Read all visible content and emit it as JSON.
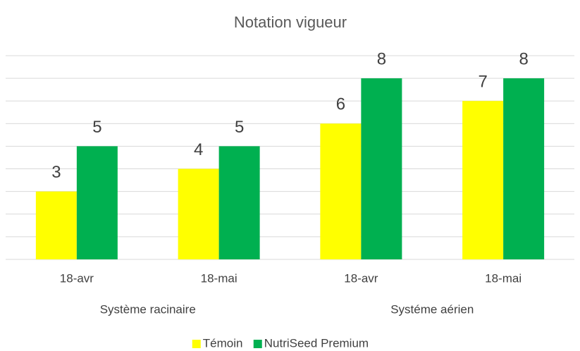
{
  "chart_data": {
    "type": "bar",
    "title": "Notation vigueur",
    "groups": [
      {
        "name": "Système racinaire",
        "categories": [
          "18-avr",
          "18-mai"
        ]
      },
      {
        "name": "Systéme aérien",
        "categories": [
          "18-avr",
          "18-mai"
        ]
      }
    ],
    "series": [
      {
        "name": "Témoin",
        "color": "#ffff00",
        "values": [
          3,
          4,
          6,
          7
        ]
      },
      {
        "name": "NutriSeed Premium",
        "color": "#00b050",
        "values": [
          5,
          5,
          8,
          8
        ]
      }
    ],
    "ylim": [
      0,
      9
    ],
    "yticks": [
      0,
      1,
      2,
      3,
      4,
      5,
      6,
      7,
      8,
      9
    ],
    "grid": true,
    "legend": "bottom"
  }
}
